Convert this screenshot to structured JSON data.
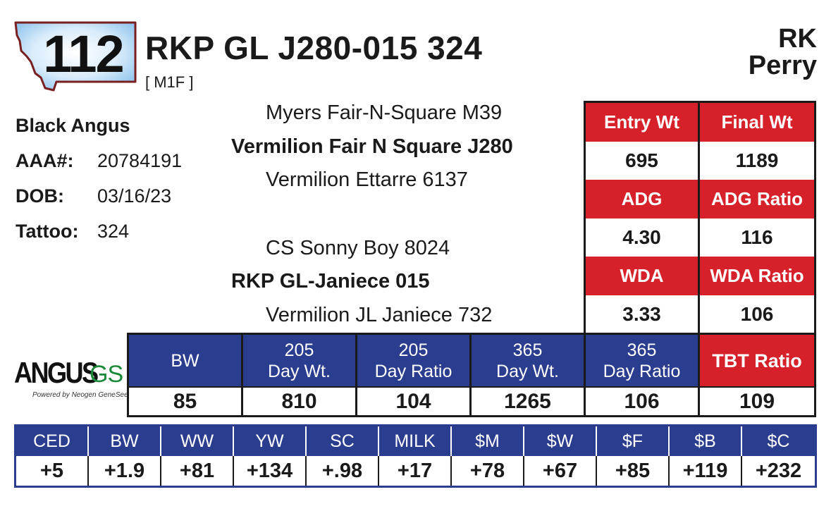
{
  "header": {
    "lot_number": "112",
    "animal_name": "RKP GL J280-015 324",
    "animal_tag": "[ M1F ]",
    "owner_line1": "RK",
    "owner_line2": "Perry"
  },
  "info": {
    "breed": "Black Angus",
    "rows": [
      {
        "label": "AAA#:",
        "value": "20784191"
      },
      {
        "label": "DOB:",
        "value": "03/16/23"
      },
      {
        "label": "Tattoo:",
        "value": "324"
      }
    ]
  },
  "pedigree": {
    "sire_sire": "Myers Fair-N-Square M39",
    "sire": "Vermilion Fair N Square J280",
    "sire_dam": "Vermilion Ettarre 6137",
    "dam_sire": "CS Sonny Boy 8024",
    "dam": "RKP GL-Janiece 015",
    "dam_dam": "Vermilion JL Janiece 732"
  },
  "stats": {
    "entry_wt_label": "Entry Wt",
    "final_wt_label": "Final Wt",
    "entry_wt": "695",
    "final_wt": "1189",
    "adg_label": "ADG",
    "adg_ratio_label": "ADG Ratio",
    "adg": "4.30",
    "adg_ratio": "116",
    "wda_label": "WDA",
    "wda_ratio_label": "WDA Ratio",
    "wda": "3.33",
    "wda_ratio": "106"
  },
  "logo": {
    "word": "ANGUS",
    "suffix": "GS",
    "tagline": "Powered by Neogen GeneSeek"
  },
  "weights": {
    "headers": [
      {
        "line1": "BW",
        "line2": ""
      },
      {
        "line1": "205",
        "line2": "Day Wt."
      },
      {
        "line1": "205",
        "line2": "Day Ratio"
      },
      {
        "line1": "365",
        "line2": "Day Wt."
      },
      {
        "line1": "365",
        "line2": "Day Ratio"
      },
      {
        "line1": "TBT Ratio",
        "line2": ""
      }
    ],
    "values": [
      "85",
      "810",
      "104",
      "1265",
      "106",
      "109"
    ]
  },
  "epds": {
    "headers": [
      "CED",
      "BW",
      "WW",
      "YW",
      "SC",
      "MILK",
      "$M",
      "$W",
      "$F",
      "$B",
      "$C"
    ],
    "values": [
      "+5",
      "+1.9",
      "+81",
      "+134",
      "+.98",
      "+17",
      "+78",
      "+67",
      "+85",
      "+119",
      "+232"
    ]
  },
  "colors": {
    "red": "#d6202a",
    "blue": "#2b3d8e",
    "logo_green": "#1a8a3a",
    "badge_outline": "#7a1f1f"
  }
}
